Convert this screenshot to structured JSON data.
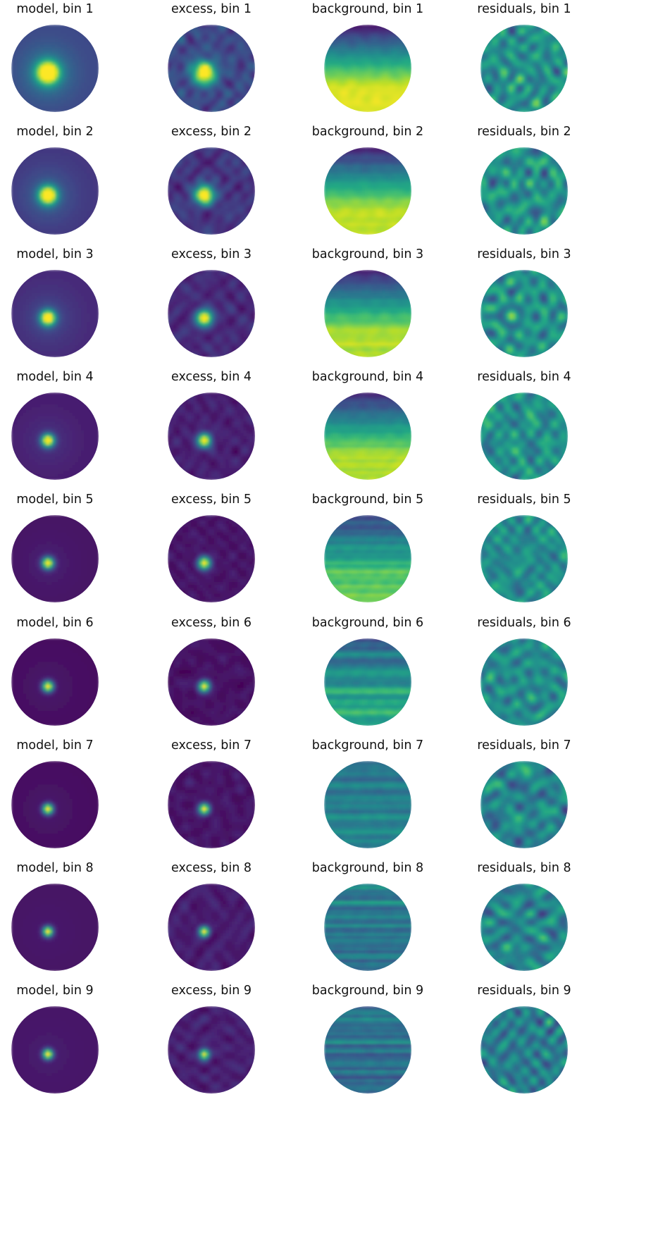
{
  "figure": {
    "layout": "grid",
    "rows": 9,
    "columns": 4,
    "panel_shape": "circle",
    "colormap": "viridis",
    "axes": "off"
  },
  "chart_data": [
    {
      "type": "heatmap",
      "kind": "model",
      "title": "model, bin 1",
      "bin": 1,
      "source": {
        "x": 0.42,
        "y": 0.55,
        "peak": 1.0,
        "width": 0.085,
        "halo": 0.22
      },
      "base_level": 0.22
    },
    {
      "type": "heatmap",
      "kind": "excess",
      "title": "excess, bin 1",
      "bin": 1,
      "source": {
        "x": 0.42,
        "y": 0.55,
        "peak": 0.95,
        "width": 0.09
      },
      "base_level": 0.22,
      "noise": 0.16
    },
    {
      "type": "heatmap",
      "kind": "background",
      "title": "background, bin 1",
      "bin": 1,
      "gradient": "vertical",
      "top_level": 0.05,
      "bottom_level": 0.95,
      "stripes": 0.02
    },
    {
      "type": "heatmap",
      "kind": "residuals",
      "title": "residuals, bin 1",
      "bin": 1,
      "mean_level": 0.5,
      "noise": 0.35
    },
    {
      "type": "heatmap",
      "kind": "model",
      "title": "model, bin 2",
      "bin": 2,
      "source": {
        "x": 0.42,
        "y": 0.55,
        "peak": 1.0,
        "width": 0.07,
        "halo": 0.15
      },
      "base_level": 0.16
    },
    {
      "type": "heatmap",
      "kind": "excess",
      "title": "excess, bin 2",
      "bin": 2,
      "source": {
        "x": 0.42,
        "y": 0.55,
        "peak": 0.95,
        "width": 0.075
      },
      "base_level": 0.16,
      "noise": 0.12
    },
    {
      "type": "heatmap",
      "kind": "background",
      "title": "background, bin 2",
      "bin": 2,
      "gradient": "vertical",
      "top_level": 0.08,
      "bottom_level": 0.9,
      "stripes": 0.04
    },
    {
      "type": "heatmap",
      "kind": "residuals",
      "title": "residuals, bin 2",
      "bin": 2,
      "mean_level": 0.5,
      "noise": 0.35
    },
    {
      "type": "heatmap",
      "kind": "model",
      "title": "model, bin 3",
      "bin": 3,
      "source": {
        "x": 0.42,
        "y": 0.55,
        "peak": 1.0,
        "width": 0.06,
        "halo": 0.1
      },
      "base_level": 0.12
    },
    {
      "type": "heatmap",
      "kind": "excess",
      "title": "excess, bin 3",
      "bin": 3,
      "source": {
        "x": 0.42,
        "y": 0.55,
        "peak": 0.95,
        "width": 0.065
      },
      "base_level": 0.12,
      "noise": 0.1
    },
    {
      "type": "heatmap",
      "kind": "background",
      "title": "background, bin 3",
      "bin": 3,
      "gradient": "vertical",
      "top_level": 0.08,
      "bottom_level": 0.88,
      "stripes": 0.05
    },
    {
      "type": "heatmap",
      "kind": "residuals",
      "title": "residuals, bin 3",
      "bin": 3,
      "mean_level": 0.5,
      "noise": 0.35
    },
    {
      "type": "heatmap",
      "kind": "model",
      "title": "model, bin 4",
      "bin": 4,
      "source": {
        "x": 0.42,
        "y": 0.55,
        "peak": 1.0,
        "width": 0.05,
        "halo": 0.06
      },
      "base_level": 0.08
    },
    {
      "type": "heatmap",
      "kind": "excess",
      "title": "excess, bin 4",
      "bin": 4,
      "source": {
        "x": 0.42,
        "y": 0.55,
        "peak": 0.95,
        "width": 0.055
      },
      "base_level": 0.09,
      "noise": 0.08
    },
    {
      "type": "heatmap",
      "kind": "background",
      "title": "background, bin 4",
      "bin": 4,
      "gradient": "vertical",
      "top_level": 0.1,
      "bottom_level": 0.88,
      "stripes": 0.07
    },
    {
      "type": "heatmap",
      "kind": "residuals",
      "title": "residuals, bin 4",
      "bin": 4,
      "mean_level": 0.5,
      "noise": 0.35
    },
    {
      "type": "heatmap",
      "kind": "model",
      "title": "model, bin 5",
      "bin": 5,
      "source": {
        "x": 0.42,
        "y": 0.55,
        "peak": 1.0,
        "width": 0.045,
        "halo": 0.04
      },
      "base_level": 0.05
    },
    {
      "type": "heatmap",
      "kind": "excess",
      "title": "excess, bin 5",
      "bin": 5,
      "source": {
        "x": 0.42,
        "y": 0.55,
        "peak": 0.95,
        "width": 0.05
      },
      "base_level": 0.06,
      "noise": 0.06
    },
    {
      "type": "heatmap",
      "kind": "background",
      "title": "background, bin 5",
      "bin": 5,
      "gradient": "vertical",
      "top_level": 0.2,
      "bottom_level": 0.75,
      "stripes": 0.14
    },
    {
      "type": "heatmap",
      "kind": "residuals",
      "title": "residuals, bin 5",
      "bin": 5,
      "mean_level": 0.48,
      "noise": 0.3
    },
    {
      "type": "heatmap",
      "kind": "model",
      "title": "model, bin 6",
      "bin": 6,
      "source": {
        "x": 0.42,
        "y": 0.55,
        "peak": 1.0,
        "width": 0.042,
        "halo": 0.02
      },
      "base_level": 0.04
    },
    {
      "type": "heatmap",
      "kind": "excess",
      "title": "excess, bin 6",
      "bin": 6,
      "source": {
        "x": 0.42,
        "y": 0.55,
        "peak": 0.95,
        "width": 0.045
      },
      "base_level": 0.05,
      "noise": 0.06
    },
    {
      "type": "heatmap",
      "kind": "background",
      "title": "background, bin 6",
      "bin": 6,
      "gradient": "vertical",
      "top_level": 0.3,
      "bottom_level": 0.6,
      "stripes": 0.2
    },
    {
      "type": "heatmap",
      "kind": "residuals",
      "title": "residuals, bin 6",
      "bin": 6,
      "mean_level": 0.48,
      "noise": 0.32
    },
    {
      "type": "heatmap",
      "kind": "model",
      "title": "model, bin 7",
      "bin": 7,
      "source": {
        "x": 0.42,
        "y": 0.55,
        "peak": 1.0,
        "width": 0.04,
        "halo": 0.02
      },
      "base_level": 0.04
    },
    {
      "type": "heatmap",
      "kind": "excess",
      "title": "excess, bin 7",
      "bin": 7,
      "source": {
        "x": 0.42,
        "y": 0.55,
        "peak": 0.95,
        "width": 0.042
      },
      "base_level": 0.06,
      "noise": 0.07
    },
    {
      "type": "heatmap",
      "kind": "background",
      "title": "background, bin 7",
      "bin": 7,
      "gradient": "vertical",
      "top_level": 0.38,
      "bottom_level": 0.45,
      "stripes": 0.22
    },
    {
      "type": "heatmap",
      "kind": "residuals",
      "title": "residuals, bin 7",
      "bin": 7,
      "mean_level": 0.45,
      "noise": 0.33
    },
    {
      "type": "heatmap",
      "kind": "model",
      "title": "model, bin 8",
      "bin": 8,
      "source": {
        "x": 0.42,
        "y": 0.55,
        "peak": 1.0,
        "width": 0.038,
        "halo": 0.02
      },
      "base_level": 0.05
    },
    {
      "type": "heatmap",
      "kind": "excess",
      "title": "excess, bin 8",
      "bin": 8,
      "source": {
        "x": 0.42,
        "y": 0.55,
        "peak": 0.9,
        "width": 0.04
      },
      "base_level": 0.08,
      "noise": 0.08
    },
    {
      "type": "heatmap",
      "kind": "background",
      "title": "background, bin 8",
      "bin": 8,
      "gradient": "vertical",
      "top_level": 0.42,
      "bottom_level": 0.38,
      "stripes": 0.22
    },
    {
      "type": "heatmap",
      "kind": "residuals",
      "title": "residuals, bin 8",
      "bin": 8,
      "mean_level": 0.45,
      "noise": 0.33
    },
    {
      "type": "heatmap",
      "kind": "model",
      "title": "model, bin 9",
      "bin": 9,
      "source": {
        "x": 0.42,
        "y": 0.55,
        "peak": 1.0,
        "width": 0.038,
        "halo": 0.02
      },
      "base_level": 0.06
    },
    {
      "type": "heatmap",
      "kind": "excess",
      "title": "excess, bin 9",
      "bin": 9,
      "source": {
        "x": 0.42,
        "y": 0.55,
        "peak": 0.9,
        "width": 0.04
      },
      "base_level": 0.09,
      "noise": 0.09
    },
    {
      "type": "heatmap",
      "kind": "background",
      "title": "background, bin 9",
      "bin": 9,
      "gradient": "vertical",
      "top_level": 0.4,
      "bottom_level": 0.35,
      "stripes": 0.22
    },
    {
      "type": "heatmap",
      "kind": "residuals",
      "title": "residuals, bin 9",
      "bin": 9,
      "mean_level": 0.42,
      "noise": 0.33
    }
  ]
}
